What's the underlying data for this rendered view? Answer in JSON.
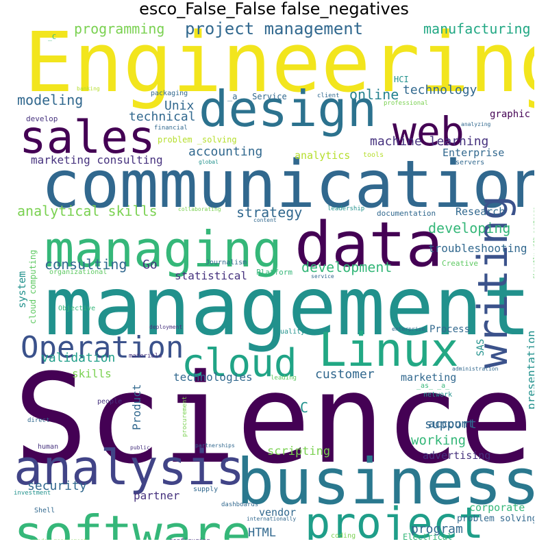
{
  "chart_data": {
    "type": "wordcloud",
    "title": "esco_False_False false_negatives",
    "colormap": "viridis",
    "words": [
      {
        "text": "Engineering",
        "color": "#f2e51d"
      },
      {
        "text": "Science",
        "color": "#440154"
      },
      {
        "text": "management",
        "color": "#21918c"
      },
      {
        "text": "communication",
        "color": "#31688e"
      },
      {
        "text": "business",
        "color": "#2a788e"
      },
      {
        "text": "software",
        "color": "#35b779"
      },
      {
        "text": "design",
        "color": "#2c728e"
      },
      {
        "text": "data",
        "color": "#440154"
      },
      {
        "text": "managing",
        "color": "#35b779"
      },
      {
        "text": "analysis",
        "color": "#414487"
      },
      {
        "text": "Linux",
        "color": "#22a884"
      },
      {
        "text": "project",
        "color": "#1f9e89"
      },
      {
        "text": "sales",
        "color": "#440154"
      },
      {
        "text": "writing",
        "color": "#3b528b"
      },
      {
        "text": "web",
        "color": "#440154"
      },
      {
        "text": "cloud",
        "color": "#20a486"
      },
      {
        "text": "Operation",
        "color": "#3b528b"
      },
      {
        "text": "project management",
        "color": "#31688e"
      },
      {
        "text": "programming",
        "color": "#7ad151"
      },
      {
        "text": "manufacturing",
        "color": "#22a884"
      },
      {
        "text": "modeling",
        "color": "#31688e"
      },
      {
        "text": "technology",
        "color": "#31688e"
      },
      {
        "text": "online",
        "color": "#26828e"
      },
      {
        "text": "Unix",
        "color": "#31688e"
      },
      {
        "text": "technical",
        "color": "#31688e"
      },
      {
        "text": "graphic",
        "color": "#440154"
      },
      {
        "text": "accounting",
        "color": "#31688e"
      },
      {
        "text": "machine learning",
        "color": "#46327e"
      },
      {
        "text": "marketing consulting",
        "color": "#46327e"
      },
      {
        "text": "analytics",
        "color": "#b5de2b"
      },
      {
        "text": "Enterprise",
        "color": "#31688e"
      },
      {
        "text": "analytical skills",
        "color": "#7ad151"
      },
      {
        "text": "strategy",
        "color": "#31688e"
      },
      {
        "text": "Research",
        "color": "#31688e"
      },
      {
        "text": "developing",
        "color": "#35b779"
      },
      {
        "text": "consulting",
        "color": "#31688e"
      },
      {
        "text": "Go",
        "color": "#46327e"
      },
      {
        "text": "development",
        "color": "#35b779"
      },
      {
        "text": "troubleshooting",
        "color": "#31688e"
      },
      {
        "text": "statistical",
        "color": "#46327e"
      },
      {
        "text": "system",
        "color": "#21918c"
      },
      {
        "text": "cloud computing",
        "color": "#5ec962"
      },
      {
        "text": "validation",
        "color": "#1f9e89"
      },
      {
        "text": "skills",
        "color": "#7ad151"
      },
      {
        "text": "customer",
        "color": "#31688e"
      },
      {
        "text": "presentation",
        "color": "#21918c"
      },
      {
        "text": "technologies",
        "color": "#31688e"
      },
      {
        "text": "marketing",
        "color": "#31688e"
      },
      {
        "text": "Product",
        "color": "#31688e"
      },
      {
        "text": "partner",
        "color": "#46327e"
      },
      {
        "text": "support",
        "color": "#31688e"
      },
      {
        "text": "account",
        "color": "#31688e"
      },
      {
        "text": "working",
        "color": "#35b779"
      },
      {
        "text": "scripting",
        "color": "#7ad151"
      },
      {
        "text": "advertising",
        "color": "#46327e"
      },
      {
        "text": "security",
        "color": "#31688e"
      },
      {
        "text": "HTML",
        "color": "#31688e"
      },
      {
        "text": "program",
        "color": "#31688e"
      },
      {
        "text": "corporate",
        "color": "#35b779"
      },
      {
        "text": "vendor",
        "color": "#31688e"
      },
      {
        "text": "problem solving",
        "color": "#31688e"
      },
      {
        "text": "C",
        "color": "#21918c"
      },
      {
        "text": "SAS",
        "color": "#21918c"
      },
      {
        "text": "Process",
        "color": "#31688e"
      },
      {
        "text": "HCI",
        "color": "#21918c"
      },
      {
        "text": "_C",
        "color": "#35b779"
      },
      {
        "text": "banking",
        "color": "#b5de2b"
      },
      {
        "text": "packaging",
        "color": "#31688e"
      },
      {
        "text": "_a_ _Service",
        "color": "#31688e"
      },
      {
        "text": "client",
        "color": "#31688e"
      },
      {
        "text": "professional",
        "color": "#7ad151"
      },
      {
        "text": "develop",
        "color": "#46327e"
      },
      {
        "text": "financial",
        "color": "#31688e"
      },
      {
        "text": "problem _solving",
        "color": "#b5de2b"
      },
      {
        "text": "analyzing",
        "color": "#31688e"
      },
      {
        "text": "tools",
        "color": "#b5de2b"
      },
      {
        "text": "global",
        "color": "#21918c"
      },
      {
        "text": "servers",
        "color": "#31688e"
      },
      {
        "text": "collaborating",
        "color": "#7ad151"
      },
      {
        "text": "leadership",
        "color": "#21918c"
      },
      {
        "text": "documentation",
        "color": "#31688e"
      },
      {
        "text": "content",
        "color": "#31688e"
      },
      {
        "text": "organizational",
        "color": "#5ec962"
      },
      {
        "text": "Journalism",
        "color": "#31688e"
      },
      {
        "text": "Platform",
        "color": "#35b779"
      },
      {
        "text": "service",
        "color": "#31688e"
      },
      {
        "text": "Creative",
        "color": "#5ec962"
      },
      {
        "text": "directly_with_partners",
        "color": "#5ec962"
      },
      {
        "text": "Objective",
        "color": "#35b779"
      },
      {
        "text": "deployment",
        "color": "#46327e"
      },
      {
        "text": "quality",
        "color": "#21918c"
      },
      {
        "text": "enterprise_",
        "color": "#31688e"
      },
      {
        "text": "materials",
        "color": "#46327e"
      },
      {
        "text": "administration",
        "color": "#31688e"
      },
      {
        "text": "leading",
        "color": "#5ec962"
      },
      {
        "text": "_as_ _a_",
        "color": "#35b779"
      },
      {
        "text": "network",
        "color": "#21918c"
      },
      {
        "text": "people",
        "color": "#46327e"
      },
      {
        "text": "procurement",
        "color": "#7ad151"
      },
      {
        "text": "direct",
        "color": "#31688e"
      },
      {
        "text": "public",
        "color": "#46327e"
      },
      {
        "text": "partnerships",
        "color": "#31688e"
      },
      {
        "text": "human",
        "color": "#46327e"
      },
      {
        "text": "supply",
        "color": "#31688e"
      },
      {
        "text": "investment",
        "color": "#21918c"
      },
      {
        "text": "Shell",
        "color": "#31688e"
      },
      {
        "text": "dashboards",
        "color": "#31688e"
      },
      {
        "text": "internationally",
        "color": "#31688e"
      },
      {
        "text": "coding",
        "color": "#7ad151"
      },
      {
        "text": "Electrical",
        "color": "#35b779"
      },
      {
        "text": "vendor_management",
        "color": "#7ad151"
      },
      {
        "text": "configuring",
        "color": "#46327e"
      },
      {
        "text": "test",
        "color": "#31688e"
      }
    ]
  }
}
